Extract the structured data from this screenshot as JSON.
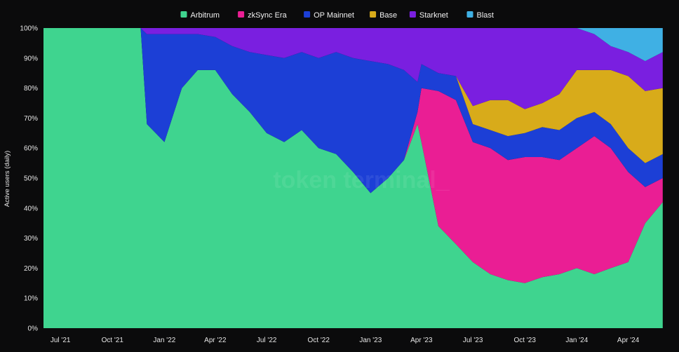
{
  "chart_data": {
    "type": "area",
    "stacked": "percent",
    "ylabel": "Active users (daily)",
    "watermark": "token terminal_",
    "legend_position": "top-center",
    "grid": false,
    "ylim": [
      0,
      100
    ],
    "yticks": [
      "0%",
      "10%",
      "20%",
      "30%",
      "40%",
      "50%",
      "60%",
      "70%",
      "80%",
      "90%",
      "100%"
    ],
    "xlim": [
      "2021-06-01",
      "2024-06-10"
    ],
    "xticks": [
      {
        "date": "2021-07-01",
        "label": "Jul '21"
      },
      {
        "date": "2021-10-01",
        "label": "Oct '21"
      },
      {
        "date": "2022-01-01",
        "label": "Jan '22"
      },
      {
        "date": "2022-04-01",
        "label": "Apr '22"
      },
      {
        "date": "2022-07-01",
        "label": "Jul '22"
      },
      {
        "date": "2022-10-01",
        "label": "Oct '22"
      },
      {
        "date": "2023-01-01",
        "label": "Jan '23"
      },
      {
        "date": "2023-04-01",
        "label": "Apr '23"
      },
      {
        "date": "2023-07-01",
        "label": "Jul '23"
      },
      {
        "date": "2023-10-01",
        "label": "Oct '23"
      },
      {
        "date": "2024-01-01",
        "label": "Jan '24"
      },
      {
        "date": "2024-04-01",
        "label": "Apr '24"
      }
    ],
    "x": [
      "2021-06-01",
      "2021-07-01",
      "2021-08-01",
      "2021-09-01",
      "2021-10-01",
      "2021-11-01",
      "2021-11-20",
      "2021-12-01",
      "2022-01-01",
      "2022-02-01",
      "2022-03-01",
      "2022-04-01",
      "2022-05-01",
      "2022-06-01",
      "2022-07-01",
      "2022-08-01",
      "2022-09-01",
      "2022-10-01",
      "2022-11-01",
      "2022-12-01",
      "2023-01-01",
      "2023-02-01",
      "2023-03-01",
      "2023-03-25",
      "2023-04-01",
      "2023-05-01",
      "2023-06-01",
      "2023-07-01",
      "2023-08-01",
      "2023-09-01",
      "2023-10-01",
      "2023-11-01",
      "2023-12-01",
      "2024-01-01",
      "2024-02-01",
      "2024-03-01",
      "2024-04-01",
      "2024-05-01",
      "2024-06-01"
    ],
    "series": [
      {
        "name": "Arbitrum",
        "color": "#3fd48f",
        "values": [
          100,
          100,
          100,
          100,
          100,
          100,
          100,
          68,
          62,
          80,
          86,
          86,
          78,
          72,
          65,
          62,
          66,
          60,
          58,
          52,
          45,
          50,
          56,
          68,
          62,
          34,
          28,
          22,
          18,
          16,
          15,
          17,
          18,
          20,
          18,
          20,
          22,
          35,
          42
        ]
      },
      {
        "name": "zkSync Era",
        "color": "#ea1e94",
        "values": [
          0,
          0,
          0,
          0,
          0,
          0,
          0,
          0,
          0,
          0,
          0,
          0,
          0,
          0,
          0,
          0,
          0,
          0,
          0,
          0,
          0,
          0,
          0,
          4,
          18,
          45,
          48,
          40,
          42,
          40,
          42,
          40,
          38,
          40,
          46,
          40,
          30,
          12,
          8
        ]
      },
      {
        "name": "OP Mainnet",
        "color": "#1c3fd6",
        "values": [
          0,
          0,
          0,
          0,
          0,
          0,
          0,
          30,
          36,
          18,
          12,
          11,
          16,
          20,
          26,
          28,
          26,
          30,
          34,
          38,
          44,
          38,
          30,
          10,
          8,
          6,
          8,
          6,
          6,
          8,
          8,
          10,
          10,
          10,
          8,
          8,
          8,
          8,
          8
        ]
      },
      {
        "name": "Base",
        "color": "#d8ab1a",
        "values": [
          0,
          0,
          0,
          0,
          0,
          0,
          0,
          0,
          0,
          0,
          0,
          0,
          0,
          0,
          0,
          0,
          0,
          0,
          0,
          0,
          0,
          0,
          0,
          0,
          0,
          0,
          0,
          6,
          10,
          12,
          8,
          8,
          12,
          16,
          14,
          18,
          24,
          24,
          22
        ]
      },
      {
        "name": "Starknet",
        "color": "#7a1fe0",
        "values": [
          0,
          0,
          0,
          0,
          0,
          0,
          0,
          2,
          2,
          2,
          2,
          3,
          6,
          8,
          9,
          10,
          8,
          10,
          8,
          10,
          11,
          12,
          14,
          18,
          12,
          15,
          16,
          26,
          24,
          24,
          27,
          25,
          22,
          14,
          12,
          8,
          8,
          10,
          12
        ]
      },
      {
        "name": "Blast",
        "color": "#3fb0e4",
        "values": [
          0,
          0,
          0,
          0,
          0,
          0,
          0,
          0,
          0,
          0,
          0,
          0,
          0,
          0,
          0,
          0,
          0,
          0,
          0,
          0,
          0,
          0,
          0,
          0,
          0,
          0,
          0,
          0,
          0,
          0,
          0,
          0,
          0,
          0,
          2,
          6,
          8,
          11,
          8
        ]
      }
    ]
  }
}
